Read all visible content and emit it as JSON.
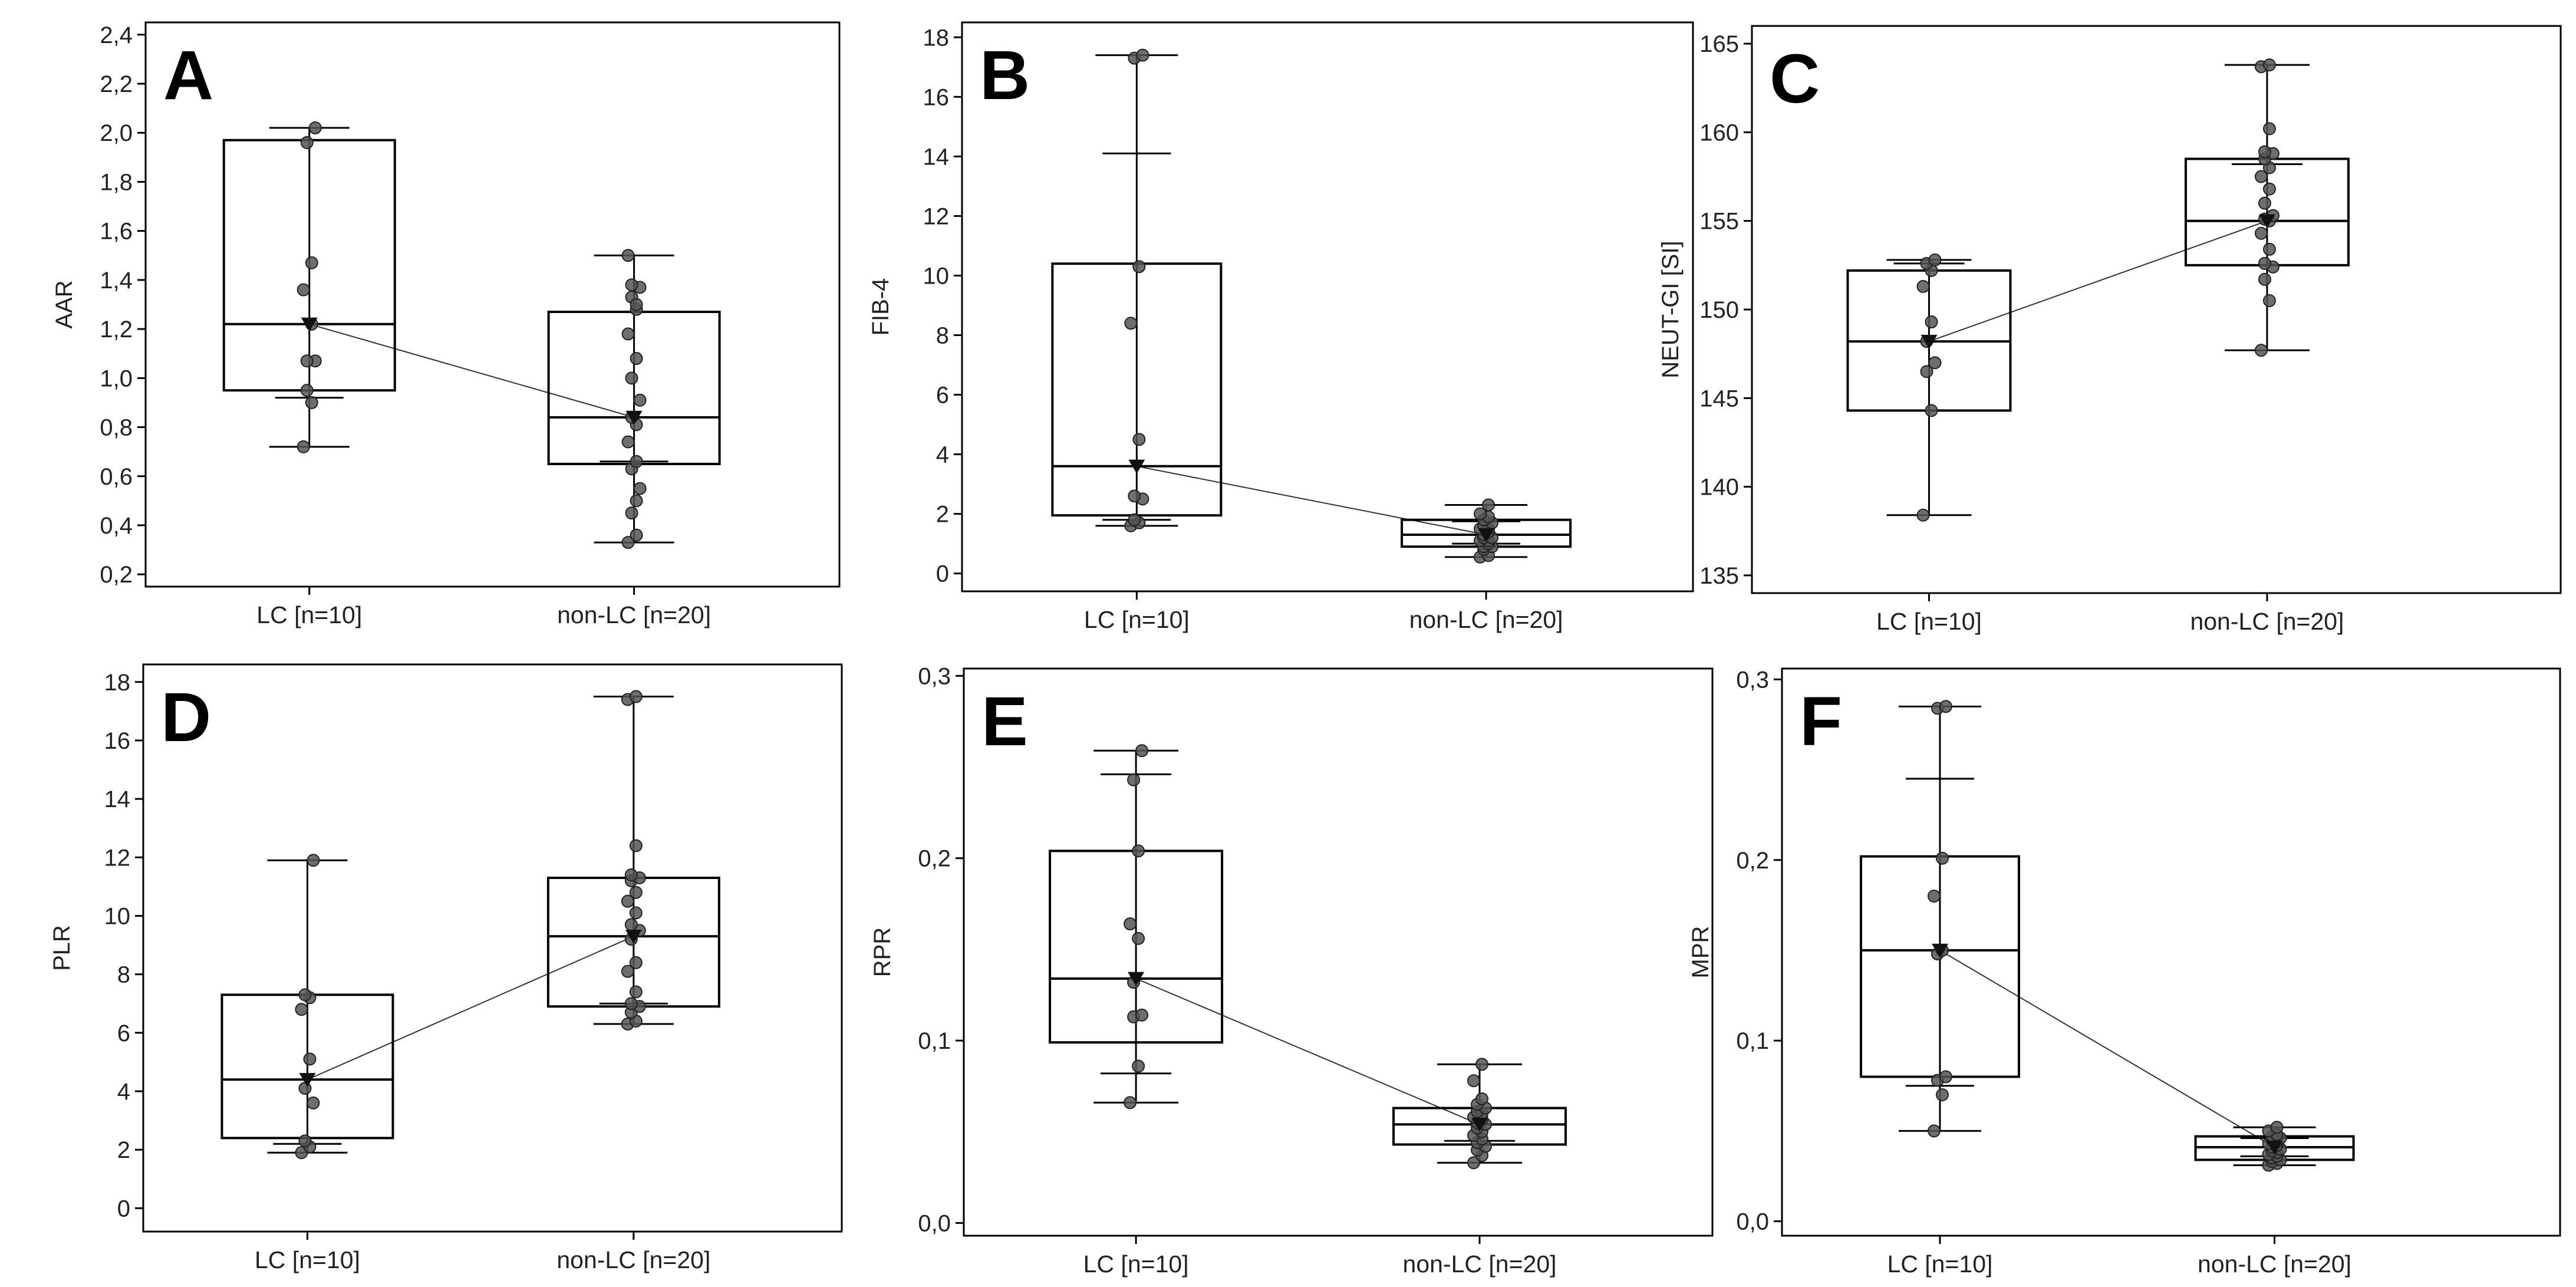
{
  "figure": {
    "background_color": "#ffffff",
    "stroke_color": "#000000",
    "point_color": "#555555"
  },
  "chart_data": [
    {
      "type": "box",
      "panel": "A",
      "ylabel": "AAR",
      "xlabel": "",
      "categories": [
        "LC [n=10]",
        "non-LC [n=20]"
      ],
      "ylim": [
        0.15,
        2.45
      ],
      "yticks": [
        0.2,
        0.4,
        0.6,
        0.8,
        1.0,
        1.2,
        1.4,
        1.6,
        1.8,
        2.0,
        2.2,
        2.4
      ],
      "ytick_labels": [
        "0,2",
        "0,4",
        "0,6",
        "0,8",
        "1,0",
        "1,2",
        "1,4",
        "1,6",
        "1,8",
        "2,0",
        "2,2",
        "2,4"
      ],
      "boxes": [
        {
          "min": 0.72,
          "q1": 0.95,
          "median": 1.22,
          "q3": 1.97,
          "max": 2.02,
          "mean": 1.22,
          "ci_low": 0.92,
          "ci_high": 1.97,
          "points": [
            0.72,
            0.9,
            0.95,
            1.07,
            1.07,
            1.22,
            1.36,
            1.47,
            1.96,
            2.02
          ]
        },
        {
          "min": 0.33,
          "q1": 0.65,
          "median": 0.84,
          "q3": 1.27,
          "max": 1.5,
          "mean": 0.84,
          "ci_low": 0.66,
          "ci_high": 1.27,
          "points": [
            0.33,
            0.36,
            0.45,
            0.55,
            0.63,
            0.66,
            0.74,
            0.81,
            0.84,
            0.91,
            1.0,
            1.08,
            1.18,
            1.28,
            1.33,
            1.37,
            1.38,
            1.3,
            1.5,
            0.5
          ]
        }
      ]
    },
    {
      "type": "box",
      "panel": "B",
      "ylabel": "FIB-4",
      "xlabel": "",
      "categories": [
        "LC [n=10]",
        "non-LC [n=20]"
      ],
      "ylim": [
        -0.6,
        18.5
      ],
      "yticks": [
        0,
        2,
        4,
        6,
        8,
        10,
        12,
        14,
        16,
        18
      ],
      "ytick_labels": [
        "0",
        "2",
        "4",
        "6",
        "8",
        "10",
        "12",
        "14",
        "16",
        "18"
      ],
      "boxes": [
        {
          "min": 1.6,
          "q1": 1.95,
          "median": 3.6,
          "q3": 10.4,
          "max": 17.4,
          "mean": 3.6,
          "ci_low": 1.8,
          "ci_high": 14.1,
          "points": [
            1.6,
            1.7,
            1.8,
            2.5,
            2.6,
            4.5,
            8.4,
            10.3,
            17.3,
            17.4
          ]
        },
        {
          "min": 0.55,
          "q1": 0.9,
          "median": 1.3,
          "q3": 1.8,
          "max": 2.3,
          "mean": 1.3,
          "ci_low": 1.0,
          "ci_high": 1.75,
          "points": [
            0.55,
            0.6,
            0.8,
            0.9,
            0.9,
            1.0,
            1.1,
            1.1,
            1.2,
            1.2,
            1.3,
            1.4,
            1.5,
            1.5,
            1.6,
            1.7,
            1.8,
            1.9,
            2.0,
            2.3
          ]
        }
      ]
    },
    {
      "type": "box",
      "panel": "C",
      "ylabel": "NEUT-GI [SI]",
      "xlabel": "",
      "categories": [
        "LC [n=10]",
        "non-LC [n=20]"
      ],
      "ylim": [
        134,
        166
      ],
      "yticks": [
        135,
        140,
        145,
        150,
        155,
        160,
        165
      ],
      "ytick_labels": [
        "135",
        "140",
        "145",
        "150",
        "155",
        "160",
        "165"
      ],
      "boxes": [
        {
          "min": 138.4,
          "q1": 144.3,
          "median": 148.2,
          "q3": 152.2,
          "max": 152.8,
          "mean": 148.2,
          "ci_low": 144.3,
          "ci_high": 152.6,
          "points": [
            138.4,
            144.3,
            146.5,
            147.0,
            148.2,
            149.3,
            151.3,
            152.2,
            152.6,
            152.8
          ]
        },
        {
          "min": 147.7,
          "q1": 152.5,
          "median": 155.0,
          "q3": 158.5,
          "max": 163.8,
          "mean": 155.0,
          "ci_low": 152.5,
          "ci_high": 158.2,
          "points": [
            147.7,
            150.5,
            151.7,
            152.4,
            152.6,
            153.4,
            154.3,
            155.0,
            155.1,
            155.3,
            156.0,
            156.8,
            157.5,
            158.0,
            158.5,
            158.8,
            158.9,
            160.2,
            163.7,
            163.8
          ]
        }
      ]
    },
    {
      "type": "box",
      "panel": "D",
      "ylabel": "PLR",
      "xlabel": "",
      "categories": [
        "LC [n=10]",
        "non-LC [n=20]"
      ],
      "ylim": [
        -0.8,
        18.6
      ],
      "yticks": [
        0,
        2,
        4,
        6,
        8,
        10,
        12,
        14,
        16,
        18
      ],
      "ytick_labels": [
        "0",
        "2",
        "4",
        "6",
        "8",
        "10",
        "12",
        "14",
        "16",
        "18"
      ],
      "boxes": [
        {
          "min": 1.9,
          "q1": 2.4,
          "median": 4.4,
          "q3": 7.3,
          "max": 11.9,
          "mean": 4.4,
          "ci_low": 2.2,
          "ci_high": 7.3,
          "points": [
            1.9,
            2.1,
            2.3,
            3.6,
            4.1,
            5.1,
            6.8,
            7.2,
            7.3,
            11.9
          ]
        },
        {
          "min": 6.3,
          "q1": 6.9,
          "median": 9.3,
          "q3": 11.3,
          "max": 17.5,
          "mean": 9.3,
          "ci_low": 7.0,
          "ci_high": 11.3,
          "points": [
            6.3,
            6.4,
            6.7,
            6.9,
            7.0,
            7.4,
            8.1,
            8.4,
            9.2,
            9.5,
            9.7,
            10.1,
            10.5,
            10.8,
            11.2,
            11.3,
            11.4,
            12.4,
            17.4,
            17.5
          ]
        }
      ]
    },
    {
      "type": "box",
      "panel": "E",
      "ylabel": "RPR",
      "xlabel": "",
      "categories": [
        "LC [n=10]",
        "non-LC [n=20]"
      ],
      "ylim": [
        -0.007,
        0.304
      ],
      "yticks": [
        0.0,
        0.1,
        0.2,
        0.3
      ],
      "ytick_labels": [
        "0,0",
        "0,1",
        "0,2",
        "0,3"
      ],
      "boxes": [
        {
          "min": 0.066,
          "q1": 0.099,
          "median": 0.134,
          "q3": 0.204,
          "max": 0.259,
          "mean": 0.134,
          "ci_low": 0.082,
          "ci_high": 0.246,
          "points": [
            0.066,
            0.086,
            0.113,
            0.114,
            0.132,
            0.156,
            0.164,
            0.204,
            0.243,
            0.259
          ]
        },
        {
          "min": 0.033,
          "q1": 0.043,
          "median": 0.054,
          "q3": 0.063,
          "max": 0.087,
          "mean": 0.054,
          "ci_low": 0.045,
          "ci_high": 0.063,
          "points": [
            0.033,
            0.037,
            0.04,
            0.042,
            0.044,
            0.046,
            0.048,
            0.05,
            0.052,
            0.054,
            0.055,
            0.057,
            0.058,
            0.06,
            0.061,
            0.063,
            0.065,
            0.068,
            0.078,
            0.087
          ]
        }
      ]
    },
    {
      "type": "box",
      "panel": "F",
      "ylabel": "MPR",
      "xlabel": "",
      "categories": [
        "LC [n=10]",
        "non-LC [n=20]"
      ],
      "ylim": [
        -0.008,
        0.306
      ],
      "yticks": [
        0.0,
        0.1,
        0.2,
        0.3
      ],
      "ytick_labels": [
        "0,0",
        "0,1",
        "0,2",
        "0,3"
      ],
      "boxes": [
        {
          "min": 0.05,
          "q1": 0.08,
          "median": 0.15,
          "q3": 0.202,
          "max": 0.285,
          "mean": 0.15,
          "ci_low": 0.075,
          "ci_high": 0.245,
          "points": [
            0.05,
            0.07,
            0.078,
            0.08,
            0.148,
            0.15,
            0.18,
            0.201,
            0.284,
            0.285
          ]
        },
        {
          "min": 0.031,
          "q1": 0.034,
          "median": 0.041,
          "q3": 0.047,
          "max": 0.052,
          "mean": 0.041,
          "ci_low": 0.036,
          "ci_high": 0.046,
          "points": [
            0.031,
            0.032,
            0.033,
            0.034,
            0.035,
            0.036,
            0.037,
            0.038,
            0.039,
            0.04,
            0.041,
            0.042,
            0.043,
            0.044,
            0.045,
            0.046,
            0.047,
            0.048,
            0.05,
            0.052
          ]
        }
      ]
    }
  ]
}
